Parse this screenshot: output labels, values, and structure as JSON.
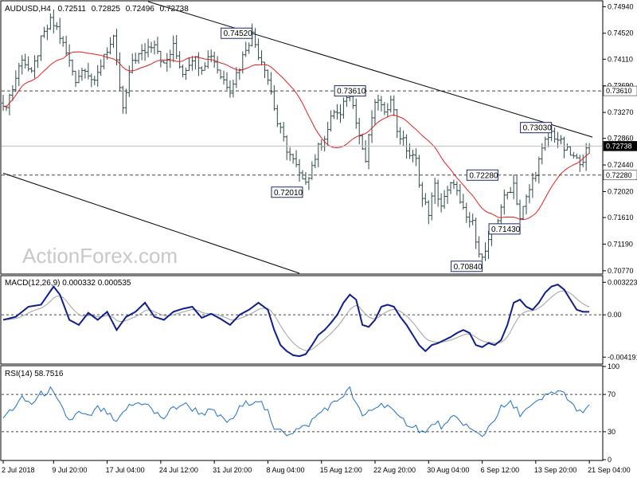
{
  "chart_data": [
    {
      "type": "ohlc",
      "panel": "price",
      "title": "AUDUSD,H4",
      "ohlc_header": [
        "0.72511",
        "0.72825",
        "0.72496",
        "0.72738"
      ],
      "watermark": "ActionForex.com",
      "ylim": [
        0.7073,
        0.7502
      ],
      "y_ticks": [
        "0.74940",
        "0.74520",
        "0.74110",
        "0.73690",
        "0.73270",
        "0.72860",
        "0.72440",
        "0.72020",
        "0.71610",
        "0.71190",
        "0.70770"
      ],
      "y_tick_values": [
        0.7494,
        0.7452,
        0.7411,
        0.7369,
        0.7327,
        0.7286,
        0.7244,
        0.7202,
        0.7161,
        0.7119,
        0.7077
      ],
      "current_price": {
        "label": "0.72738",
        "value": 0.72738
      },
      "levels": [
        {
          "label": "0.73610",
          "value": 0.7361
        },
        {
          "label": "0.72280",
          "value": 0.7228
        }
      ],
      "annotations": [
        {
          "text": "0.74520",
          "value": 0.7452,
          "bar": 79
        },
        {
          "text": "0.73610",
          "value": 0.7361,
          "bar": 115
        },
        {
          "text": "0.72010",
          "value": 0.7201,
          "bar": 95
        },
        {
          "text": "0.73030",
          "value": 0.7303,
          "bar": 174
        },
        {
          "text": "0.72280",
          "value": 0.7228,
          "bar": 157
        },
        {
          "text": "0.71430",
          "value": 0.7143,
          "bar": 164
        },
        {
          "text": "0.70840",
          "value": 0.7084,
          "bar": 152
        }
      ],
      "trendlines": [
        {
          "from": {
            "bar": 46,
            "value": 0.7502
          },
          "to": {
            "bar": 187,
            "value": 0.7288
          }
        },
        {
          "from": {
            "bar": 0,
            "value": 0.7231
          },
          "to": {
            "bar": 94,
            "value": 0.7073
          }
        }
      ],
      "moving_average_color": "#e02020",
      "keypoints": [
        [
          0,
          0.733
        ],
        [
          3,
          0.7365
        ],
        [
          6,
          0.7415
        ],
        [
          9,
          0.7385
        ],
        [
          12,
          0.744
        ],
        [
          15,
          0.747
        ],
        [
          17,
          0.746
        ],
        [
          20,
          0.742
        ],
        [
          23,
          0.738
        ],
        [
          26,
          0.74
        ],
        [
          29,
          0.737
        ],
        [
          32,
          0.742
        ],
        [
          35,
          0.744
        ],
        [
          38,
          0.733
        ],
        [
          41,
          0.741
        ],
        [
          44,
          0.742
        ],
        [
          48,
          0.744
        ],
        [
          51,
          0.74
        ],
        [
          54,
          0.743
        ],
        [
          57,
          0.739
        ],
        [
          60,
          0.7415
        ],
        [
          63,
          0.74
        ],
        [
          66,
          0.742
        ],
        [
          69,
          0.7385
        ],
        [
          72,
          0.7365
        ],
        [
          75,
          0.74
        ],
        [
          77,
          0.743
        ],
        [
          79,
          0.745
        ],
        [
          81,
          0.742
        ],
        [
          83,
          0.74
        ],
        [
          85,
          0.736
        ],
        [
          87,
          0.731
        ],
        [
          90,
          0.727
        ],
        [
          93,
          0.724
        ],
        [
          95,
          0.7215
        ],
        [
          97,
          0.723
        ],
        [
          100,
          0.727
        ],
        [
          103,
          0.73
        ],
        [
          105,
          0.733
        ],
        [
          107,
          0.732
        ],
        [
          109,
          0.7355
        ],
        [
          111,
          0.7345
        ],
        [
          113,
          0.729
        ],
        [
          115,
          0.725
        ],
        [
          117,
          0.732
        ],
        [
          119,
          0.735
        ],
        [
          121,
          0.732
        ],
        [
          123,
          0.7355
        ],
        [
          125,
          0.73
        ],
        [
          127,
          0.728
        ],
        [
          129,
          0.726
        ],
        [
          131,
          0.725
        ],
        [
          133,
          0.719
        ],
        [
          135,
          0.717
        ],
        [
          137,
          0.721
        ],
        [
          139,
          0.718
        ],
        [
          141,
          0.72
        ],
        [
          143,
          0.722
        ],
        [
          145,
          0.718
        ],
        [
          147,
          0.716
        ],
        [
          149,
          0.715
        ],
        [
          151,
          0.711
        ],
        [
          152,
          0.7095
        ],
        [
          154,
          0.712
        ],
        [
          156,
          0.714
        ],
        [
          158,
          0.718
        ],
        [
          160,
          0.72
        ],
        [
          162,
          0.7215
        ],
        [
          164,
          0.716
        ],
        [
          166,
          0.719
        ],
        [
          168,
          0.722
        ],
        [
          170,
          0.725
        ],
        [
          172,
          0.728
        ],
        [
          174,
          0.7295
        ],
        [
          176,
          0.7285
        ],
        [
          178,
          0.727
        ],
        [
          180,
          0.726
        ],
        [
          182,
          0.725
        ],
        [
          184,
          0.7255
        ],
        [
          186,
          0.7274
        ]
      ],
      "x_tick_labels": [
        "2 Jul 2018",
        "9 Jul 20:00",
        "17 Jul 04:00",
        "24 Jul 12:00",
        "31 Jul 20:00",
        "8 Aug 04:00",
        "15 Aug 12:00",
        "22 Aug 20:00",
        "30 Aug 04:00",
        "6 Sep 12:00",
        "13 Sep 20:00",
        "21 Sep 04:00"
      ],
      "x_tick_bars": [
        0,
        16,
        33,
        50,
        67,
        84,
        101,
        118,
        135,
        152,
        169,
        186
      ]
    },
    {
      "type": "line",
      "panel": "macd",
      "title": "MACD(12,26,9) 0.000332 0.000535",
      "ylim": [
        -0.0048,
        0.0038
      ],
      "y_ticks": [
        "0.003223",
        "0.00",
        "-0.004191"
      ],
      "y_tick_values": [
        0.003223,
        0.0,
        -0.004191
      ],
      "zero_line": 0.0,
      "main_color": "#101e8c",
      "signal_color": "#a0a0a0",
      "values": [
        [
          0,
          -0.0005
        ],
        [
          4,
          -0.0002
        ],
        [
          8,
          0.0008
        ],
        [
          12,
          0.001
        ],
        [
          16,
          0.0028
        ],
        [
          18,
          0.002
        ],
        [
          21,
          -0.0005
        ],
        [
          24,
          -0.001
        ],
        [
          27,
          0.0002
        ],
        [
          30,
          -0.0005
        ],
        [
          33,
          0.0003
        ],
        [
          36,
          -0.0015
        ],
        [
          39,
          -0.0002
        ],
        [
          42,
          0.0003
        ],
        [
          45,
          0.0012
        ],
        [
          48,
          -0.0002
        ],
        [
          51,
          -0.0005
        ],
        [
          54,
          0.0003
        ],
        [
          57,
          0.0006
        ],
        [
          60,
          0.0008
        ],
        [
          63,
          -0.0003
        ],
        [
          66,
          0.0001
        ],
        [
          69,
          -0.0004
        ],
        [
          72,
          -0.001
        ],
        [
          75,
          0.0
        ],
        [
          78,
          0.0005
        ],
        [
          81,
          0.0012
        ],
        [
          84,
          0.0005
        ],
        [
          86,
          -0.0015
        ],
        [
          88,
          -0.003
        ],
        [
          90,
          -0.0036
        ],
        [
          92,
          -0.004
        ],
        [
          94,
          -0.0041
        ],
        [
          96,
          -0.0039
        ],
        [
          98,
          -0.003
        ],
        [
          100,
          -0.002
        ],
        [
          102,
          -0.0015
        ],
        [
          104,
          -0.0008
        ],
        [
          106,
          0.0
        ],
        [
          108,
          0.0012
        ],
        [
          110,
          0.002
        ],
        [
          112,
          0.0015
        ],
        [
          114,
          -0.001
        ],
        [
          116,
          -0.0012
        ],
        [
          118,
          -0.0005
        ],
        [
          120,
          0.0008
        ],
        [
          122,
          0.001
        ],
        [
          124,
          0.0008
        ],
        [
          126,
          -0.0002
        ],
        [
          128,
          -0.001
        ],
        [
          130,
          -0.002
        ],
        [
          132,
          -0.003
        ],
        [
          134,
          -0.0036
        ],
        [
          136,
          -0.003
        ],
        [
          138,
          -0.0028
        ],
        [
          140,
          -0.0025
        ],
        [
          142,
          -0.0022
        ],
        [
          144,
          -0.0018
        ],
        [
          146,
          -0.0015
        ],
        [
          148,
          -0.0018
        ],
        [
          150,
          -0.003
        ],
        [
          152,
          -0.0032
        ],
        [
          154,
          -0.0028
        ],
        [
          156,
          -0.003
        ],
        [
          158,
          -0.0025
        ],
        [
          160,
          -0.001
        ],
        [
          162,
          0.0012
        ],
        [
          164,
          0.0015
        ],
        [
          166,
          0.0008
        ],
        [
          168,
          0.0005
        ],
        [
          170,
          0.0012
        ],
        [
          172,
          0.0022
        ],
        [
          174,
          0.0028
        ],
        [
          176,
          0.003
        ],
        [
          178,
          0.0025
        ],
        [
          180,
          0.0015
        ],
        [
          182,
          0.0005
        ],
        [
          184,
          0.0003
        ],
        [
          186,
          0.0003
        ]
      ]
    },
    {
      "type": "line",
      "panel": "rsi",
      "title": "RSI(14) 58.7516",
      "ylim": [
        0,
        100
      ],
      "y_ticks": [
        "100",
        "70",
        "30",
        "0"
      ],
      "y_tick_values": [
        100,
        70,
        30,
        0
      ],
      "levels": [
        70,
        30
      ],
      "line_color": "#1e6fc8",
      "values": [
        [
          0,
          45
        ],
        [
          3,
          55
        ],
        [
          6,
          65
        ],
        [
          9,
          60
        ],
        [
          12,
          70
        ],
        [
          15,
          75
        ],
        [
          18,
          58
        ],
        [
          21,
          42
        ],
        [
          24,
          50
        ],
        [
          27,
          45
        ],
        [
          30,
          55
        ],
        [
          33,
          50
        ],
        [
          36,
          38
        ],
        [
          39,
          55
        ],
        [
          42,
          60
        ],
        [
          45,
          62
        ],
        [
          48,
          50
        ],
        [
          51,
          45
        ],
        [
          54,
          55
        ],
        [
          57,
          60
        ],
        [
          60,
          55
        ],
        [
          63,
          50
        ],
        [
          66,
          52
        ],
        [
          69,
          45
        ],
        [
          72,
          40
        ],
        [
          75,
          55
        ],
        [
          78,
          62
        ],
        [
          81,
          65
        ],
        [
          84,
          50
        ],
        [
          86,
          30
        ],
        [
          88,
          35
        ],
        [
          90,
          28
        ],
        [
          93,
          32
        ],
        [
          96,
          35
        ],
        [
          99,
          45
        ],
        [
          102,
          55
        ],
        [
          105,
          60
        ],
        [
          108,
          70
        ],
        [
          110,
          75
        ],
        [
          112,
          60
        ],
        [
          114,
          45
        ],
        [
          116,
          52
        ],
        [
          119,
          58
        ],
        [
          122,
          60
        ],
        [
          125,
          45
        ],
        [
          128,
          40
        ],
        [
          131,
          35
        ],
        [
          134,
          28
        ],
        [
          137,
          40
        ],
        [
          140,
          35
        ],
        [
          143,
          45
        ],
        [
          146,
          40
        ],
        [
          149,
          30
        ],
        [
          152,
          25
        ],
        [
          155,
          40
        ],
        [
          158,
          55
        ],
        [
          161,
          60
        ],
        [
          164,
          50
        ],
        [
          167,
          55
        ],
        [
          170,
          62
        ],
        [
          173,
          70
        ],
        [
          176,
          74
        ],
        [
          179,
          68
        ],
        [
          182,
          50
        ],
        [
          184,
          52
        ],
        [
          186,
          59
        ]
      ]
    }
  ],
  "colors": {
    "bars": "#2e4a4a",
    "grid_dashed": "#444444",
    "trendline": "#000000",
    "annotation_border": "#1a2a6c"
  }
}
